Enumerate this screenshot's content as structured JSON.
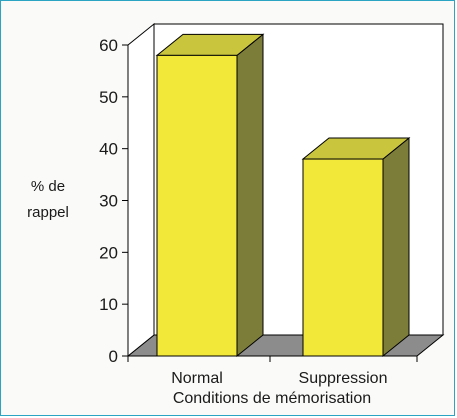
{
  "chart_data": {
    "type": "bar",
    "categories": [
      "Normal",
      "Suppression"
    ],
    "values": [
      58,
      38
    ],
    "xlabel": "Conditions de mémorisation",
    "ylabel": [
      "% de",
      "rappel"
    ],
    "ylim": [
      0,
      60
    ],
    "yticks": [
      "0",
      "10",
      "20",
      "30",
      "40",
      "50",
      "60"
    ],
    "grid": false,
    "colors": {
      "bar_front": "#f2e83a",
      "bar_top": "#c9c63e",
      "bar_side": "#7d7d3a",
      "floor": "#8c8c8c",
      "frame_border": "#2ba4c4"
    }
  }
}
